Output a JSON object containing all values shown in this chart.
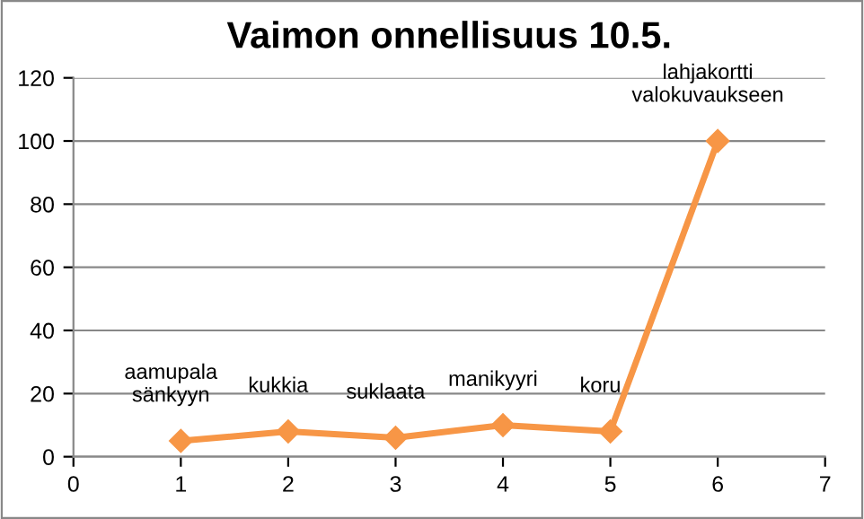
{
  "chart_data": {
    "type": "line",
    "title": "Vaimon onnellisuus 10.5.",
    "x": [
      1,
      2,
      3,
      4,
      5,
      6
    ],
    "series": [
      {
        "color": "#f79646",
        "values": [
          5,
          8,
          6,
          10,
          8,
          100
        ]
      }
    ],
    "xlim": [
      0,
      7
    ],
    "xticks": [
      0,
      1,
      2,
      3,
      4,
      5,
      6,
      7
    ],
    "ylim": [
      0,
      120
    ],
    "yticks": [
      0,
      20,
      40,
      60,
      80,
      100,
      120
    ],
    "grid": "y",
    "marker": "diamond",
    "line_style": "solid",
    "annotations": [
      {
        "text": "aamupala\nsänkyyn",
        "x": 1,
        "y": 5
      },
      {
        "text": "kukkia",
        "x": 2,
        "y": 8
      },
      {
        "text": "suklaata",
        "x": 3,
        "y": 6
      },
      {
        "text": "manikyyri",
        "x": 4,
        "y": 10
      },
      {
        "text": "koru",
        "x": 5,
        "y": 8
      },
      {
        "text": "lahjakortti\nvalokuvaukseen",
        "x": 6,
        "y": 100
      }
    ]
  }
}
